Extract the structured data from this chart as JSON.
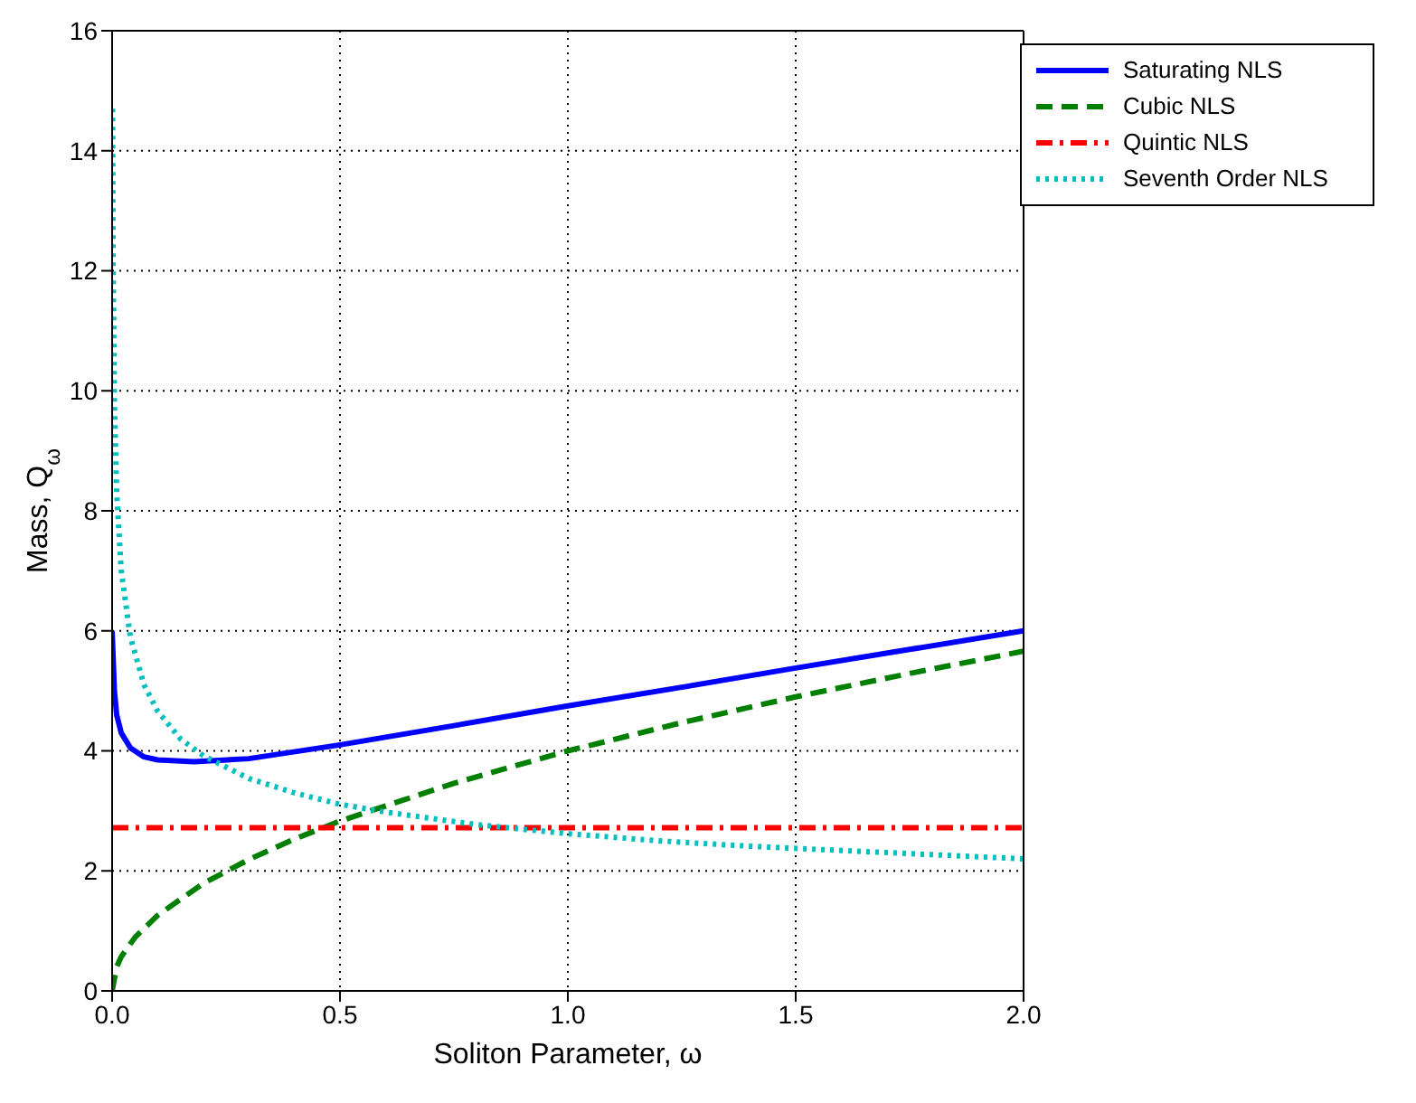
{
  "chart_data": {
    "type": "line",
    "xlabel": "Soliton Parameter,  ω",
    "ylabel": "Mass,  Q$_{ω}$",
    "xlim": [
      0,
      2
    ],
    "ylim": [
      0,
      16
    ],
    "xticks": [
      {
        "value": 0,
        "label": "0.0"
      },
      0.5,
      {
        "value": 1,
        "label": "1.0"
      },
      1.5,
      {
        "value": 2,
        "label": "2.0"
      }
    ],
    "yticks": [
      0,
      2,
      4,
      6,
      8,
      10,
      12,
      14,
      16
    ],
    "grid": true,
    "legend": "top right",
    "marker": "none",
    "series": [
      {
        "name": "Saturating NLS",
        "color": "#0000ff",
        "line_style": "solid",
        "x": [
          0,
          0.005,
          0.01,
          0.02,
          0.04,
          0.07,
          0.1,
          0.18,
          0.3,
          0.5,
          0.75,
          1.0,
          1.25,
          1.5,
          1.75,
          2.0
        ],
        "values": [
          6.0,
          5.0,
          4.6,
          4.3,
          4.05,
          3.9,
          3.85,
          3.82,
          3.87,
          4.1,
          4.42,
          4.75,
          5.06,
          5.38,
          5.69,
          6.0
        ]
      },
      {
        "name": "Cubic NLS",
        "color": "#007f00",
        "line_style": "dashed",
        "x": [
          0,
          0.01,
          0.02,
          0.05,
          0.1,
          0.2,
          0.3,
          0.4,
          0.5,
          0.75,
          1.0,
          1.25,
          1.5,
          1.75,
          2.0
        ],
        "values": [
          0,
          0.4,
          0.57,
          0.89,
          1.26,
          1.79,
          2.19,
          2.53,
          2.83,
          3.46,
          4.0,
          4.47,
          4.9,
          5.29,
          5.66
        ]
      },
      {
        "name": "Quintic NLS",
        "color": "#ff0000",
        "line_style": "dashdot",
        "x": [
          0,
          2
        ],
        "values": [
          2.72,
          2.72
        ]
      },
      {
        "name": "Seventh Order NLS",
        "color": "#00bfbf",
        "line_style": "dotted",
        "x": [
          0.001,
          0.002,
          0.005,
          0.01,
          0.02,
          0.04,
          0.07,
          0.1,
          0.15,
          0.2,
          0.3,
          0.4,
          0.5,
          0.6,
          0.8,
          1.0,
          1.2,
          1.4,
          1.6,
          1.8,
          2.0
        ],
        "values": [
          14.7,
          12.4,
          9.8,
          8.3,
          7.0,
          5.9,
          5.1,
          4.66,
          4.2,
          3.92,
          3.54,
          3.3,
          3.11,
          2.98,
          2.77,
          2.62,
          2.5,
          2.41,
          2.34,
          2.27,
          2.2
        ]
      }
    ]
  }
}
